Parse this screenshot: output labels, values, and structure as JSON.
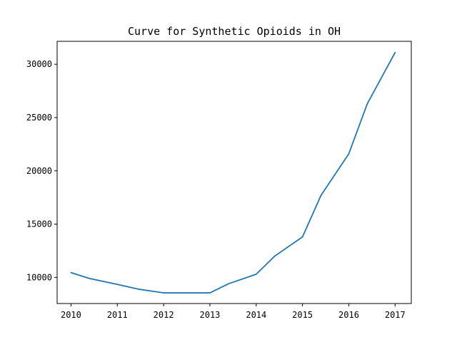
{
  "chart_data": {
    "type": "line",
    "title": "Curve for Synthetic Opioids in OH",
    "xlabel": "",
    "ylabel": "",
    "xlim": [
      2009.7,
      2017.35
    ],
    "ylim": [
      7550,
      32150
    ],
    "xticks": [
      2010,
      2011,
      2012,
      2013,
      2014,
      2015,
      2016,
      2017
    ],
    "xtick_labels": [
      "2010",
      "2011",
      "2012",
      "2013",
      "2014",
      "2015",
      "2016",
      "2017"
    ],
    "yticks": [
      10000,
      15000,
      20000,
      25000,
      30000
    ],
    "ytick_labels": [
      "10000",
      "15000",
      "20000",
      "25000",
      "30000"
    ],
    "grid": false,
    "series": [
      {
        "color": "#1f77b4",
        "x": [
          2010.0,
          2010.4,
          2011.0,
          2011.45,
          2012.0,
          2012.5,
          2013.0,
          2013.4,
          2014.0,
          2014.4,
          2015.0,
          2015.4,
          2016.0,
          2016.4,
          2017.0
        ],
        "y": [
          10450,
          9900,
          9350,
          8900,
          8550,
          8550,
          8550,
          9400,
          10300,
          12000,
          13800,
          17700,
          21600,
          26300,
          31100
        ]
      }
    ]
  }
}
